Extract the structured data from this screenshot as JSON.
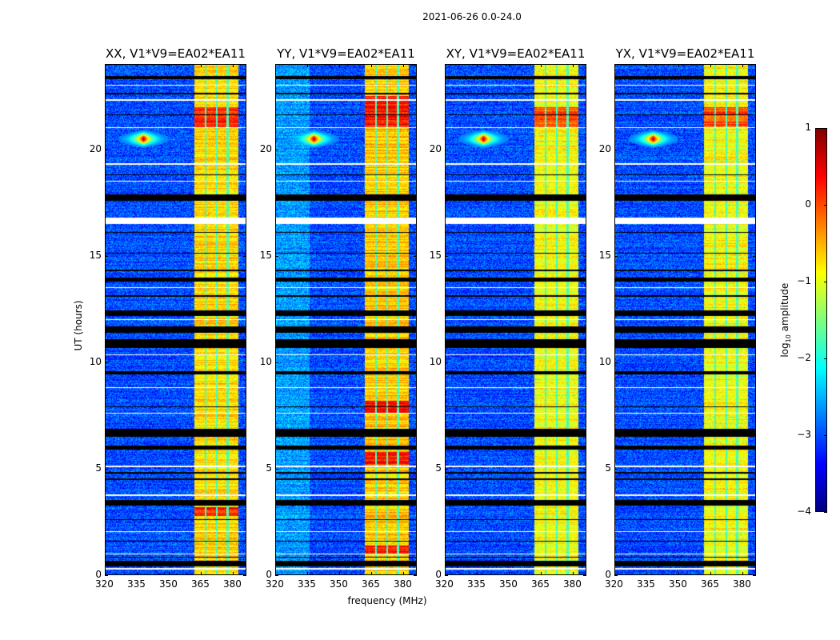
{
  "chart_data": {
    "type": "heatmap",
    "title": "2021-06-26 0.0-24.0",
    "xlabel": "frequency (MHz)",
    "ylabel": "UT (hours)",
    "xlim": [
      320,
      386.4
    ],
    "ylim": [
      0,
      24
    ],
    "xticks": [
      320,
      335,
      350,
      365,
      380
    ],
    "yticks": [
      0,
      5,
      10,
      15,
      20
    ],
    "colormap": "jet",
    "panels": [
      {
        "title": "XX, V1*V9=EA02*EA11",
        "band_level": -0.7,
        "red_rows": [
          [
            21.0,
            22.0
          ],
          [
            2.8,
            3.2
          ]
        ]
      },
      {
        "title": "YY, V1*V9=EA02*EA11",
        "band_level": -0.6,
        "red_rows": [
          [
            21.0,
            22.5
          ],
          [
            5.2,
            5.8
          ],
          [
            7.6,
            8.2
          ],
          [
            1.0,
            1.4
          ]
        ]
      },
      {
        "title": "XY, V1*V9=EA02*EA11",
        "band_level": -0.9,
        "red_rows": [
          [
            21.0,
            22.0
          ]
        ]
      },
      {
        "title": "YX, V1*V9=EA02*EA11",
        "band_level": -0.9,
        "red_rows": [
          [
            21.0,
            22.0
          ]
        ]
      }
    ],
    "rfi_band_mhz": [
      362,
      382.4
    ],
    "rfi_subband_gaps_mhz": [
      367.1,
      372.3,
      377.5
    ],
    "hotspot": {
      "freq_mhz": 338,
      "time_h": 20.5,
      "log10_amplitude": 0.8
    },
    "background_log10_amplitude": -3,
    "flagged_rows_h": [
      [
        0.45,
        0.7
      ],
      [
        0.85,
        0.9
      ],
      [
        1.6,
        1.65
      ],
      [
        2.6,
        2.65
      ],
      [
        3.3,
        3.55
      ],
      [
        4.5,
        4.55
      ],
      [
        4.8,
        4.85
      ],
      [
        5.9,
        6.1
      ],
      [
        6.5,
        6.9
      ],
      [
        7.9,
        7.95
      ],
      [
        9.45,
        9.6
      ],
      [
        10.7,
        11.1
      ],
      [
        11.4,
        11.7
      ],
      [
        12.2,
        12.45
      ],
      [
        13.1,
        13.15
      ],
      [
        13.8,
        14.0
      ],
      [
        14.3,
        14.35
      ],
      [
        15.1,
        15.15
      ],
      [
        16.1,
        16.15
      ],
      [
        17.6,
        17.9
      ],
      [
        18.8,
        18.85
      ],
      [
        21.6,
        21.65
      ],
      [
        22.6,
        22.65
      ],
      [
        23.3,
        23.45
      ]
    ],
    "white_rows_h": [
      [
        0.3,
        0.35
      ],
      [
        1.0,
        1.04
      ],
      [
        2.05,
        2.1
      ],
      [
        3.75,
        3.8
      ],
      [
        5.1,
        5.15
      ],
      [
        7.6,
        7.65
      ],
      [
        8.8,
        8.85
      ],
      [
        10.35,
        10.4
      ],
      [
        12.0,
        12.05
      ],
      [
        13.5,
        13.55
      ],
      [
        16.5,
        16.8
      ],
      [
        18.5,
        18.55
      ],
      [
        19.3,
        19.35
      ],
      [
        21.0,
        21.05
      ],
      [
        22.3,
        22.35
      ],
      [
        23.0,
        23.05
      ]
    ],
    "colorbar": {
      "label": "log10 amplitude",
      "label_base": "log",
      "label_sub": "10",
      "label_rest": " amplitude",
      "range": [
        -4,
        1
      ],
      "ticks": [
        -4,
        -3,
        -2,
        -1,
        0,
        1
      ]
    }
  }
}
